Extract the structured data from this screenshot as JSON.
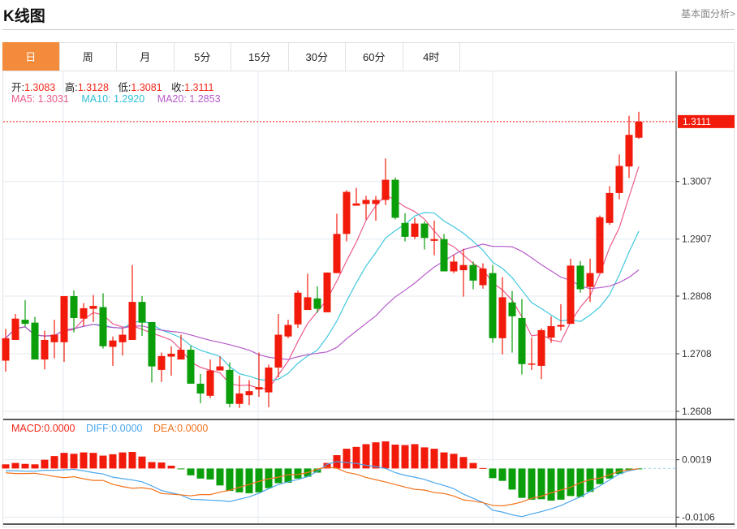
{
  "header": {
    "title": "K线图",
    "link": "基本面分析>"
  },
  "tabs": [
    {
      "label": "日",
      "active": true
    },
    {
      "label": "周"
    },
    {
      "label": "月"
    },
    {
      "label": "5分"
    },
    {
      "label": "15分"
    },
    {
      "label": "30分"
    },
    {
      "label": "60分"
    },
    {
      "label": "4时"
    }
  ],
  "info": {
    "open_label": "开:",
    "open": "1.3083",
    "high_label": "高:",
    "high": "1.3128",
    "low_label": "低:",
    "low": "1.3081",
    "close_label": "收:",
    "close": "1.3111",
    "ma5": "MA5: 1.3031",
    "ma10": "MA10: 1.2920",
    "ma20": "MA20: 1.2853",
    "macd": "MACD:0.0000",
    "diff": "DIFF:0.0000",
    "dea": "DEA:0.0000"
  },
  "colors": {
    "up": "#f21a0a",
    "down": "#0a9e0a",
    "ma5": "#ec5a8c",
    "ma10": "#40c8de",
    "ma20": "#b65ac9",
    "diff": "#4aa7ee",
    "dea": "#f2731c",
    "accent": "#f28c3c"
  },
  "chart_data": [
    {
      "type": "candlestick",
      "title": "K线图",
      "ylim": [
        1.2608,
        1.3111
      ],
      "yticks": [
        "1.3007",
        "1.2907",
        "1.2808",
        "1.2708",
        "1.2608"
      ],
      "last_price": "1.3111",
      "series_names": [
        "MA5",
        "MA10",
        "MA20"
      ],
      "ohlc": [
        [
          1.2696,
          1.2751,
          1.2677,
          1.2735
        ],
        [
          1.2732,
          1.2777,
          1.2732,
          1.2769
        ],
        [
          1.2767,
          1.2801,
          1.2755,
          1.276
        ],
        [
          1.2762,
          1.2772,
          1.2698,
          1.2698
        ],
        [
          1.2698,
          1.2748,
          1.2681,
          1.2732
        ],
        [
          1.2728,
          1.2767,
          1.27,
          1.2741
        ],
        [
          1.2728,
          1.2808,
          1.2694,
          1.2808
        ],
        [
          1.2808,
          1.2818,
          1.2745,
          1.277
        ],
        [
          1.2769,
          1.2796,
          1.2756,
          1.2787
        ],
        [
          1.2786,
          1.281,
          1.2763,
          1.2791
        ],
        [
          1.2789,
          1.2813,
          1.2717,
          1.2721
        ],
        [
          1.272,
          1.2738,
          1.2687,
          1.2731
        ],
        [
          1.2728,
          1.2752,
          1.2705,
          1.2741
        ],
        [
          1.2732,
          1.2862,
          1.2732,
          1.2798
        ],
        [
          1.2798,
          1.2808,
          1.2739,
          1.2762
        ],
        [
          1.2763,
          1.2763,
          1.2658,
          1.2686
        ],
        [
          1.268,
          1.271,
          1.2659,
          1.2704
        ],
        [
          1.2703,
          1.2721,
          1.267,
          1.2708
        ],
        [
          1.2698,
          1.2741,
          1.2698,
          1.2715
        ],
        [
          1.2715,
          1.2722,
          1.2656,
          1.2656
        ],
        [
          1.2656,
          1.2673,
          1.2622,
          1.2639
        ],
        [
          1.2635,
          1.2698,
          1.2631,
          1.2679
        ],
        [
          1.2679,
          1.2703,
          1.2679,
          1.2686
        ],
        [
          1.268,
          1.2693,
          1.2615,
          1.2621
        ],
        [
          1.2621,
          1.267,
          1.2614,
          1.2639
        ],
        [
          1.2636,
          1.2662,
          1.2619,
          1.2643
        ],
        [
          1.2646,
          1.271,
          1.2633,
          1.265
        ],
        [
          1.2641,
          1.2689,
          1.2615,
          1.2684
        ],
        [
          1.2684,
          1.2777,
          1.2667,
          1.2741
        ],
        [
          1.2738,
          1.2767,
          1.2735,
          1.2758
        ],
        [
          1.2759,
          1.2818,
          1.2753,
          1.2814
        ],
        [
          1.2784,
          1.2847,
          1.2784,
          1.2806
        ],
        [
          1.2804,
          1.2825,
          1.2779,
          1.2786
        ],
        [
          1.278,
          1.2849,
          1.278,
          1.2849
        ],
        [
          1.2848,
          1.2951,
          1.2848,
          1.2916
        ],
        [
          1.2916,
          1.2992,
          1.2903,
          1.2989
        ],
        [
          1.2965,
          1.2996,
          1.2965,
          1.2969
        ],
        [
          1.2968,
          1.2982,
          1.2941,
          1.2975
        ],
        [
          1.2968,
          1.2982,
          1.2939,
          1.2975
        ],
        [
          1.2975,
          1.3047,
          1.2966,
          1.301
        ],
        [
          1.301,
          1.3014,
          1.2941,
          1.2944
        ],
        [
          1.2935,
          1.2952,
          1.2903,
          1.2911
        ],
        [
          1.2911,
          1.2944,
          1.2907,
          1.2934
        ],
        [
          1.2934,
          1.2938,
          1.2889,
          1.2909
        ],
        [
          1.2904,
          1.2939,
          1.2879,
          1.2907
        ],
        [
          1.2907,
          1.2916,
          1.2851,
          1.2851
        ],
        [
          1.2851,
          1.288,
          1.2848,
          1.2868
        ],
        [
          1.2853,
          1.289,
          1.2807,
          1.2862
        ],
        [
          1.2862,
          1.2868,
          1.282,
          1.2835
        ],
        [
          1.2827,
          1.2865,
          1.2821,
          1.2856
        ],
        [
          1.2848,
          1.2862,
          1.2727,
          1.2735
        ],
        [
          1.2735,
          1.2841,
          1.2707,
          1.2806
        ],
        [
          1.2797,
          1.2817,
          1.271,
          1.2773
        ],
        [
          1.277,
          1.2803,
          1.2672,
          1.269
        ],
        [
          1.269,
          1.2736,
          1.268,
          1.2691
        ],
        [
          1.2687,
          1.2752,
          1.2664,
          1.2749
        ],
        [
          1.2736,
          1.2773,
          1.2727,
          1.2756
        ],
        [
          1.2755,
          1.2794,
          1.2748,
          1.2758
        ],
        [
          1.276,
          1.2873,
          1.276,
          1.2861
        ],
        [
          1.2861,
          1.2869,
          1.2814,
          1.282
        ],
        [
          1.2824,
          1.2873,
          1.2798,
          1.2848
        ],
        [
          1.2848,
          1.2948,
          1.2848,
          1.2945
        ],
        [
          1.2935,
          1.2999,
          1.2932,
          1.2987
        ],
        [
          1.2987,
          1.3054,
          1.2976,
          1.3034
        ],
        [
          1.3033,
          1.3121,
          1.3013,
          1.3088
        ],
        [
          1.3083,
          1.3128,
          1.3081,
          1.3111
        ]
      ]
    },
    {
      "type": "bar+line",
      "title": "MACD",
      "ylim": [
        -0.0106,
        0.0019
      ],
      "yticks": [
        "0.0019",
        "-0.0106"
      ],
      "macd": [
        0.0009,
        0.0012,
        0.001,
        0.0009,
        0.0019,
        0.0027,
        0.0034,
        0.0032,
        0.0035,
        0.0034,
        0.0028,
        0.0031,
        0.0035,
        0.0036,
        0.0026,
        0.0014,
        0.0013,
        0.0006,
        -0.0001,
        -0.0015,
        -0.0022,
        -0.0024,
        -0.0037,
        -0.0049,
        -0.0052,
        -0.0054,
        -0.0052,
        -0.0043,
        -0.0032,
        -0.0031,
        -0.0022,
        -0.0018,
        -0.0009,
        0.0012,
        0.0029,
        0.0043,
        0.0047,
        0.0053,
        0.0057,
        0.0059,
        0.0052,
        0.0051,
        0.0053,
        0.0046,
        0.0043,
        0.0035,
        0.0032,
        0.0025,
        0.0012,
        0.0001,
        -0.0021,
        -0.0027,
        -0.0046,
        -0.0064,
        -0.0068,
        -0.0067,
        -0.007,
        -0.0068,
        -0.006,
        -0.0062,
        -0.0051,
        -0.0034,
        -0.0022,
        -0.0012,
        -0.0004,
        -0.0001
      ],
      "diff": [
        -0.0005,
        -0.0005,
        -0.0006,
        -0.0006,
        -0.0004,
        -0.0004,
        -0.0003,
        -0.0002,
        -0.0005,
        -0.0009,
        -0.0012,
        -0.0019,
        -0.0022,
        -0.0025,
        -0.0029,
        -0.0038,
        -0.0048,
        -0.0053,
        -0.0058,
        -0.0067,
        -0.0068,
        -0.0069,
        -0.007,
        -0.0072,
        -0.0067,
        -0.0062,
        -0.0054,
        -0.0044,
        -0.0035,
        -0.0029,
        -0.0024,
        -0.0018,
        -0.0006,
        0.0009,
        0.0015,
        0.0013,
        0.0011,
        0.0007,
        0.0004,
        0.0,
        -0.0009,
        -0.0015,
        -0.0019,
        -0.0024,
        -0.0031,
        -0.0037,
        -0.0044,
        -0.0056,
        -0.0065,
        -0.0074,
        -0.0091,
        -0.0095,
        -0.0101,
        -0.0105,
        -0.0099,
        -0.0094,
        -0.0088,
        -0.0081,
        -0.0071,
        -0.0062,
        -0.005,
        -0.0038,
        -0.0025,
        -0.0012,
        -0.0005,
        -0.0001
      ]
    }
  ]
}
